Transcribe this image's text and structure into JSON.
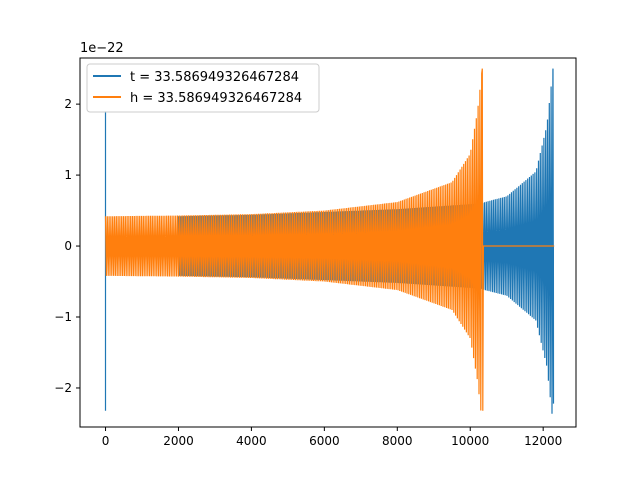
{
  "chart_data": {
    "type": "line",
    "title": "",
    "xlabel": "",
    "ylabel": "",
    "y_offset_label": "1e−22",
    "xlim": [
      -700,
      12900
    ],
    "ylim": [
      -2.55,
      2.65
    ],
    "x_ticks": [
      0,
      2000,
      4000,
      6000,
      8000,
      10000,
      12000
    ],
    "y_ticks": [
      -2,
      -1,
      0,
      1,
      2
    ],
    "x_tick_labels": [
      "0",
      "2000",
      "4000",
      "6000",
      "8000",
      "10000",
      "12000"
    ],
    "y_tick_labels": [
      "−2",
      "−1",
      "0",
      "1",
      "2"
    ],
    "grid": false,
    "legend_position": "upper-left",
    "series": [
      {
        "name": "t = 33.586949326467284",
        "color": "#1f77b4",
        "x_range": [
          0,
          12300
        ],
        "x_gap": [
          30,
          2000
        ],
        "spikes": [
          {
            "x": 0,
            "max": 1.9,
            "min": -2.32
          }
        ],
        "envelope": [
          {
            "x": 30,
            "amp": 0.0
          },
          {
            "x": 2000,
            "amp": 0.42
          },
          {
            "x": 4000,
            "amp": 0.44
          },
          {
            "x": 6000,
            "amp": 0.48
          },
          {
            "x": 8000,
            "amp": 0.52
          },
          {
            "x": 10300,
            "amp": 0.6
          },
          {
            "x": 10400,
            "amp": 0.62
          },
          {
            "x": 11000,
            "amp": 0.7
          },
          {
            "x": 11800,
            "amp": 1.05
          },
          {
            "x": 12100,
            "amp": 1.7
          },
          {
            "x": 12270,
            "amp": 2.5
          }
        ],
        "final_min": -2.22,
        "tail": {
          "from": 12280,
          "to": 12300,
          "value": 0.0
        }
      },
      {
        "name": "h = 33.586949326467284",
        "color": "#ff7f0e",
        "x_range": [
          0,
          12300
        ],
        "x_gap": [
          30,
          2000
        ],
        "spikes": [],
        "envelope": [
          {
            "x": 0,
            "amp": 0.42
          },
          {
            "x": 2000,
            "amp": 0.43
          },
          {
            "x": 4000,
            "amp": 0.45
          },
          {
            "x": 6000,
            "amp": 0.5
          },
          {
            "x": 8000,
            "amp": 0.62
          },
          {
            "x": 9500,
            "amp": 0.9
          },
          {
            "x": 10000,
            "amp": 1.3
          },
          {
            "x": 10200,
            "amp": 1.9
          },
          {
            "x": 10330,
            "amp": 2.5
          }
        ],
        "final_min": -2.32,
        "tail": {
          "from": 10360,
          "to": 12300,
          "value": 0.0
        }
      }
    ]
  }
}
